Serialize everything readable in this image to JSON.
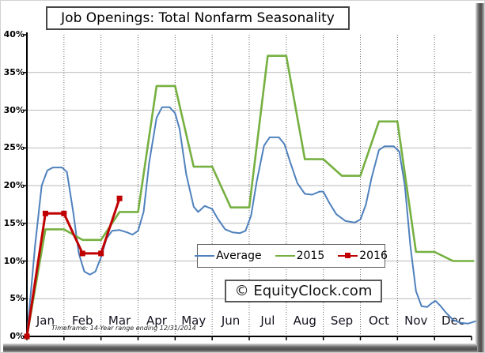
{
  "chart_data": {
    "type": "line",
    "title": "Job Openings: Total Nonfarm Seasonality",
    "watermark": "© EquityClock.com",
    "footnote": "Timeframe: 14-Year range ending 12/31/2014",
    "x_unit": "month position: 0 = Jan 1, 0.5 = mid-Jan, 12 = Dec 31",
    "x_tick_labels": [
      "Jan",
      "Feb",
      "Mar",
      "Apr",
      "May",
      "Jun",
      "Jul",
      "Aug",
      "Sep",
      "Oct",
      "Nov",
      "Dec"
    ],
    "ylim": [
      0,
      40
    ],
    "y_tick_step": 5,
    "y_tick_suffix": "%",
    "grid": {
      "horizontal": "solid light gray every 5%",
      "vertical": "dotted dark gray at month boundaries"
    },
    "legend": {
      "position": "inside lower-middle",
      "entries": [
        "Average",
        "2015",
        "2016"
      ]
    },
    "series": [
      {
        "name": "Average",
        "color": "#4f81bd",
        "width": 2,
        "markers": false,
        "points": [
          [
            0,
            0
          ],
          [
            0.22,
            12
          ],
          [
            0.4,
            20
          ],
          [
            0.55,
            22.0
          ],
          [
            0.7,
            22.4
          ],
          [
            0.95,
            22.4
          ],
          [
            1.08,
            21.8
          ],
          [
            1.25,
            16.5
          ],
          [
            1.4,
            11
          ],
          [
            1.55,
            8.6
          ],
          [
            1.7,
            8.2
          ],
          [
            1.85,
            8.6
          ],
          [
            2.0,
            10.5
          ],
          [
            2.15,
            13.0
          ],
          [
            2.3,
            14.0
          ],
          [
            2.5,
            14.1
          ],
          [
            2.7,
            13.8
          ],
          [
            2.85,
            13.5
          ],
          [
            3.0,
            14.0
          ],
          [
            3.15,
            16.5
          ],
          [
            3.3,
            23
          ],
          [
            3.5,
            29.0
          ],
          [
            3.65,
            30.4
          ],
          [
            3.85,
            30.4
          ],
          [
            4.0,
            29.6
          ],
          [
            4.12,
            27.5
          ],
          [
            4.3,
            21.5
          ],
          [
            4.5,
            17.2
          ],
          [
            4.62,
            16.5
          ],
          [
            4.8,
            17.3
          ],
          [
            5.0,
            16.9
          ],
          [
            5.15,
            15.6
          ],
          [
            5.35,
            14.2
          ],
          [
            5.55,
            13.8
          ],
          [
            5.75,
            13.7
          ],
          [
            5.9,
            14.0
          ],
          [
            6.05,
            16
          ],
          [
            6.2,
            20.5
          ],
          [
            6.4,
            25.3
          ],
          [
            6.55,
            26.4
          ],
          [
            6.8,
            26.4
          ],
          [
            6.95,
            25.5
          ],
          [
            7.1,
            23.2
          ],
          [
            7.3,
            20.3
          ],
          [
            7.5,
            18.9
          ],
          [
            7.7,
            18.8
          ],
          [
            7.9,
            19.2
          ],
          [
            8.0,
            19.2
          ],
          [
            8.15,
            17.8
          ],
          [
            8.35,
            16.2
          ],
          [
            8.6,
            15.3
          ],
          [
            8.85,
            15.1
          ],
          [
            9.0,
            15.5
          ],
          [
            9.15,
            17.5
          ],
          [
            9.3,
            21
          ],
          [
            9.5,
            24.7
          ],
          [
            9.65,
            25.2
          ],
          [
            9.9,
            25.2
          ],
          [
            10.05,
            24.5
          ],
          [
            10.2,
            20
          ],
          [
            10.35,
            12
          ],
          [
            10.5,
            6
          ],
          [
            10.65,
            4.0
          ],
          [
            10.8,
            3.9
          ],
          [
            10.95,
            4.5
          ],
          [
            11.03,
            4.7
          ],
          [
            11.15,
            4.1
          ],
          [
            11.3,
            3.2
          ],
          [
            11.5,
            2.2
          ],
          [
            11.7,
            1.8
          ],
          [
            11.9,
            1.7
          ],
          [
            12.1,
            2.0
          ]
        ]
      },
      {
        "name": "2015",
        "color": "#76b041",
        "width": 2.6,
        "markers": false,
        "points": [
          [
            0,
            0
          ],
          [
            0.5,
            14.2
          ],
          [
            1,
            14.2
          ],
          [
            1.5,
            12.8
          ],
          [
            2,
            12.8
          ],
          [
            2.5,
            16.5
          ],
          [
            3,
            16.5
          ],
          [
            3.5,
            33.2
          ],
          [
            4,
            33.2
          ],
          [
            4.5,
            22.5
          ],
          [
            5,
            22.5
          ],
          [
            5.5,
            17.1
          ],
          [
            6,
            17.1
          ],
          [
            6.5,
            37.2
          ],
          [
            7,
            37.2
          ],
          [
            7.5,
            23.5
          ],
          [
            8,
            23.5
          ],
          [
            8.5,
            21.3
          ],
          [
            9,
            21.3
          ],
          [
            9.5,
            28.5
          ],
          [
            10,
            28.5
          ],
          [
            10.5,
            11.2
          ],
          [
            11,
            11.2
          ],
          [
            11.5,
            10.0
          ],
          [
            12.05,
            10.0
          ]
        ]
      },
      {
        "name": "2016",
        "color": "#c00000",
        "width": 3,
        "markers": true,
        "marker_shape": "square",
        "points": [
          [
            0,
            0
          ],
          [
            0.5,
            16.3
          ],
          [
            1,
            16.3
          ],
          [
            1.5,
            11.0
          ],
          [
            2,
            11.0
          ],
          [
            2.5,
            18.3
          ]
        ]
      }
    ]
  }
}
